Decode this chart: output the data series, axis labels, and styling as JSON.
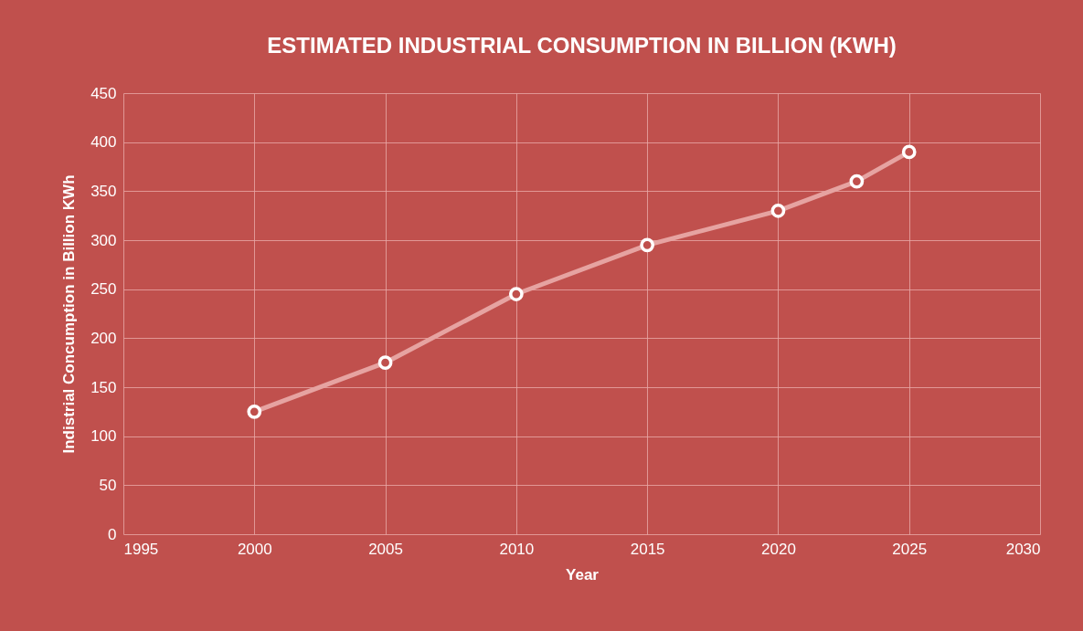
{
  "chart_data": {
    "type": "line",
    "title": "ESTIMATED INDUSTRIAL  CONSUMPTION IN BILLION (KWH)",
    "xlabel": "Year",
    "ylabel": "Indistrial Concumption in Billion KWh",
    "x": [
      2000,
      2005,
      2010,
      2015,
      2020,
      2023,
      2025
    ],
    "series": [
      {
        "color": "#e6a3a1",
        "values": [
          125,
          175,
          245,
          295,
          330,
          360,
          390
        ]
      }
    ],
    "xlim": [
      1995,
      2030
    ],
    "xticks": [
      1995,
      2000,
      2005,
      2010,
      2015,
      2020,
      2025,
      2030
    ],
    "ylim": [
      0,
      450
    ],
    "yticks": [
      0,
      50,
      100,
      150,
      200,
      250,
      300,
      350,
      400,
      450
    ],
    "grid": true,
    "marker": "circle",
    "line_style": "solid"
  }
}
